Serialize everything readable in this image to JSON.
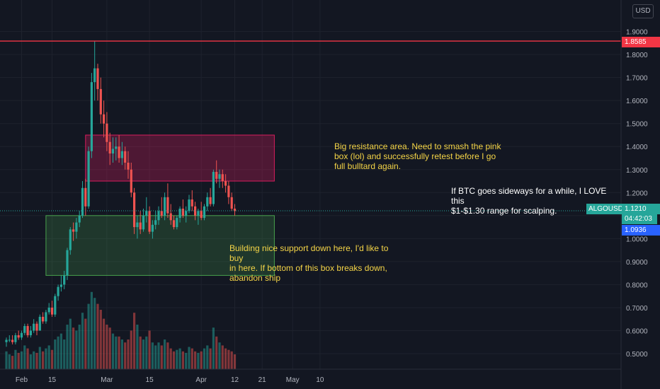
{
  "currency_button": "USD",
  "chart_data": {
    "type": "candlestick",
    "symbol": "ALGOUSD",
    "ylim": [
      0.42,
      2.0
    ],
    "y_ticks": [
      "0.5000",
      "0.6000",
      "0.7000",
      "0.8000",
      "0.9000",
      "1.0000",
      "1.1000",
      "1.2000",
      "1.3000",
      "1.4000",
      "1.5000",
      "1.6000",
      "1.7000",
      "1.8000",
      "1.9000"
    ],
    "x_ticks": [
      {
        "label": "Feb",
        "day": 5
      },
      {
        "label": "15",
        "day": 15
      },
      {
        "label": "Mar",
        "day": 33
      },
      {
        "label": "15",
        "day": 47
      },
      {
        "label": "Apr",
        "day": 64
      },
      {
        "label": "12",
        "day": 75
      },
      {
        "label": "21",
        "day": 84
      },
      {
        "label": "May",
        "day": 94
      },
      {
        "label": "10",
        "day": 103
      }
    ],
    "candles": [
      [
        0.55,
        0.57,
        0.53,
        0.56,
        12
      ],
      [
        0.56,
        0.58,
        0.55,
        0.56,
        10
      ],
      [
        0.56,
        0.58,
        0.54,
        0.55,
        9
      ],
      [
        0.55,
        0.59,
        0.54,
        0.58,
        13
      ],
      [
        0.58,
        0.6,
        0.56,
        0.57,
        11
      ],
      [
        0.57,
        0.6,
        0.56,
        0.59,
        12
      ],
      [
        0.59,
        0.63,
        0.58,
        0.62,
        16
      ],
      [
        0.62,
        0.63,
        0.57,
        0.58,
        14
      ],
      [
        0.58,
        0.62,
        0.57,
        0.6,
        10
      ],
      [
        0.6,
        0.65,
        0.59,
        0.63,
        12
      ],
      [
        0.63,
        0.64,
        0.58,
        0.6,
        11
      ],
      [
        0.6,
        0.67,
        0.6,
        0.66,
        15
      ],
      [
        0.66,
        0.68,
        0.63,
        0.64,
        12
      ],
      [
        0.64,
        0.69,
        0.63,
        0.68,
        14
      ],
      [
        0.68,
        0.72,
        0.67,
        0.7,
        16
      ],
      [
        0.7,
        0.73,
        0.66,
        0.67,
        13
      ],
      [
        0.67,
        0.76,
        0.66,
        0.75,
        20
      ],
      [
        0.75,
        0.8,
        0.73,
        0.79,
        22
      ],
      [
        0.79,
        0.84,
        0.77,
        0.8,
        24
      ],
      [
        0.8,
        0.86,
        0.78,
        0.84,
        20
      ],
      [
        0.84,
        0.96,
        0.82,
        0.95,
        30
      ],
      [
        0.95,
        1.05,
        0.93,
        1.04,
        34
      ],
      [
        1.04,
        1.07,
        0.99,
        1.03,
        28
      ],
      [
        1.03,
        1.09,
        1.0,
        1.07,
        26
      ],
      [
        1.07,
        1.12,
        1.05,
        1.1,
        30
      ],
      [
        1.1,
        1.25,
        1.09,
        1.22,
        38
      ],
      [
        1.22,
        1.26,
        1.1,
        1.14,
        34
      ],
      [
        1.14,
        1.4,
        1.13,
        1.38,
        44
      ],
      [
        1.38,
        1.72,
        1.35,
        1.68,
        52
      ],
      [
        1.68,
        1.86,
        1.6,
        1.74,
        48
      ],
      [
        1.74,
        1.76,
        1.6,
        1.65,
        44
      ],
      [
        1.65,
        1.7,
        1.5,
        1.54,
        40
      ],
      [
        1.54,
        1.6,
        1.44,
        1.5,
        34
      ],
      [
        1.5,
        1.55,
        1.38,
        1.42,
        30
      ],
      [
        1.42,
        1.46,
        1.32,
        1.37,
        28
      ],
      [
        1.37,
        1.44,
        1.33,
        1.39,
        24
      ],
      [
        1.39,
        1.44,
        1.34,
        1.4,
        22
      ],
      [
        1.4,
        1.45,
        1.33,
        1.35,
        22
      ],
      [
        1.35,
        1.42,
        1.32,
        1.38,
        20
      ],
      [
        1.38,
        1.4,
        1.3,
        1.33,
        18
      ],
      [
        1.33,
        1.38,
        1.26,
        1.3,
        20
      ],
      [
        1.3,
        1.33,
        1.18,
        1.2,
        26
      ],
      [
        1.2,
        1.22,
        1.02,
        1.05,
        38
      ],
      [
        1.05,
        1.1,
        1.0,
        1.07,
        30
      ],
      [
        1.07,
        1.12,
        1.02,
        1.04,
        22
      ],
      [
        1.04,
        1.13,
        1.03,
        1.1,
        20
      ],
      [
        1.1,
        1.18,
        1.07,
        1.12,
        22
      ],
      [
        1.12,
        1.14,
        1.02,
        1.03,
        26
      ],
      [
        1.03,
        1.08,
        1.0,
        1.06,
        18
      ],
      [
        1.06,
        1.12,
        1.04,
        1.08,
        16
      ],
      [
        1.08,
        1.14,
        1.06,
        1.12,
        18
      ],
      [
        1.12,
        1.18,
        1.09,
        1.1,
        16
      ],
      [
        1.1,
        1.2,
        1.08,
        1.18,
        20
      ],
      [
        1.18,
        1.24,
        1.09,
        1.11,
        18
      ],
      [
        1.11,
        1.15,
        1.06,
        1.08,
        14
      ],
      [
        1.08,
        1.1,
        1.04,
        1.05,
        12
      ],
      [
        1.05,
        1.1,
        1.04,
        1.09,
        13
      ],
      [
        1.09,
        1.14,
        1.07,
        1.13,
        14
      ],
      [
        1.13,
        1.17,
        1.09,
        1.1,
        12
      ],
      [
        1.1,
        1.14,
        1.07,
        1.12,
        11
      ],
      [
        1.12,
        1.19,
        1.11,
        1.17,
        15
      ],
      [
        1.17,
        1.21,
        1.12,
        1.14,
        14
      ],
      [
        1.14,
        1.16,
        1.08,
        1.1,
        12
      ],
      [
        1.1,
        1.13,
        1.06,
        1.12,
        11
      ],
      [
        1.12,
        1.16,
        1.08,
        1.09,
        12
      ],
      [
        1.09,
        1.15,
        1.08,
        1.14,
        14
      ],
      [
        1.14,
        1.2,
        1.12,
        1.18,
        16
      ],
      [
        1.18,
        1.22,
        1.14,
        1.15,
        14
      ],
      [
        1.15,
        1.3,
        1.14,
        1.29,
        28
      ],
      [
        1.29,
        1.34,
        1.24,
        1.26,
        22
      ],
      [
        1.26,
        1.3,
        1.22,
        1.28,
        18
      ],
      [
        1.28,
        1.3,
        1.22,
        1.25,
        16
      ],
      [
        1.25,
        1.28,
        1.2,
        1.23,
        14
      ],
      [
        1.23,
        1.25,
        1.15,
        1.18,
        13
      ],
      [
        1.18,
        1.2,
        1.12,
        1.13,
        12
      ],
      [
        1.13,
        1.15,
        1.1,
        1.12,
        10
      ]
    ],
    "resistance_line": 1.8585,
    "current_price_line": 1.121,
    "zones": [
      {
        "name": "resistance",
        "y_top": 1.45,
        "y_bottom": 1.25,
        "day_start": 26,
        "day_end": 88
      },
      {
        "name": "support",
        "y_top": 1.1,
        "y_bottom": 0.84,
        "day_start": 13,
        "day_end": 88
      }
    ],
    "price_tags": {
      "resistance": "1.8585",
      "current": "1.1210",
      "countdown": "04:42:03",
      "other": "1.0936"
    }
  },
  "annotations": {
    "resistance_note": "Big resistance area. Need to smash the pink\nbox (lol) and successfully retest  before I go\nfull bulltard again.",
    "support_note": "Building nice support down here, I'd like to buy\nin here. If bottom of this box breaks down,\nabandon ship",
    "sideways_note": "If BTC goes sideways for a while, I LOVE this\n$1-$1.30 range for scalping."
  },
  "colors": {
    "up": "#26a69a",
    "down": "#ef5350",
    "resistance": "#f23645",
    "pink_zone": "#e91e63",
    "green_zone": "#4caf50",
    "axis": "#b2b5be"
  }
}
